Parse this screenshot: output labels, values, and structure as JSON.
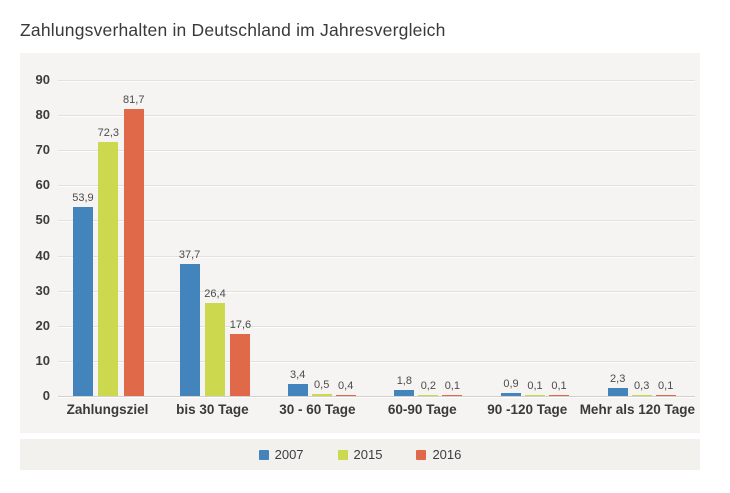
{
  "page": {
    "title": "Zahlungsverhalten in Deutschland im Jahresvergleich"
  },
  "colors": {
    "series_2007": "#4484bc",
    "series_2015": "#ccd94e",
    "series_2016": "#e0694a",
    "panel_bg": "#f5f4f2",
    "legend_bg": "#f2f1ee",
    "grid_line": "#e2e0dc",
    "baseline": "#d2d0cc",
    "title_text": "#393939",
    "value_label_text": "#4b4b4b",
    "axis_text": "#3d3d3d"
  },
  "chart_data": {
    "type": "bar",
    "title": "Zahlungsverhalten in Deutschland im Jahresvergleich",
    "categories": [
      "Zahlungsziel",
      "bis 30 Tage",
      "30 - 60 Tage",
      "60-90 Tage",
      "90 -120 Tage",
      "Mehr als 120 Tage"
    ],
    "series": [
      {
        "name": "2007",
        "color": "#4484bc",
        "values": [
          53.9,
          37.7,
          3.4,
          1.8,
          0.9,
          2.3
        ],
        "labels": [
          "53,9",
          "37,7",
          "3,4",
          "1,8",
          "0,9",
          "2,3"
        ]
      },
      {
        "name": "2015",
        "color": "#ccd94e",
        "values": [
          72.3,
          26.4,
          0.5,
          0.2,
          0.1,
          0.3
        ],
        "labels": [
          "72,3",
          "26,4",
          "0,5",
          "0,2",
          "0,1",
          "0,3"
        ]
      },
      {
        "name": "2016",
        "color": "#e0694a",
        "values": [
          81.7,
          17.6,
          0.4,
          0.1,
          0.1,
          0.1
        ],
        "labels": [
          "81,7",
          "17,6",
          "0,4",
          "0,1",
          "0,1",
          "0,1"
        ]
      }
    ],
    "yticks": [
      0,
      10,
      20,
      30,
      40,
      50,
      60,
      70,
      80,
      90
    ],
    "ylim": [
      0,
      90
    ],
    "grid": true,
    "legend_position": "bottom",
    "xlabel": "",
    "ylabel": ""
  }
}
